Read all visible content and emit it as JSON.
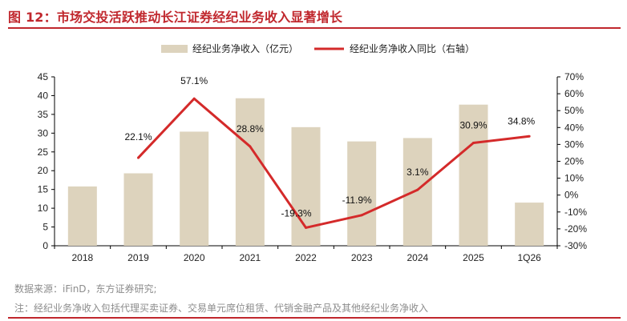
{
  "title": "图 12：市场交投活跃推动长江证券经纪业务收入显著增长",
  "source": "数据来源：iFinD，东方证券研究;",
  "footnote": "注：经纪业务净收入包括代理买卖证券、交易单元席位租赁、代销金融产品及其他经纪业务净收入",
  "colors": {
    "bar": "#ddd3bd",
    "line": "#d42a2a",
    "title": "#c0272d",
    "text": "#222222",
    "axis": "#000000"
  },
  "chart_data": {
    "type": "bar",
    "categories": [
      "2018",
      "2019",
      "2020",
      "2021",
      "2022",
      "2023",
      "2024",
      "2025",
      "1Q26"
    ],
    "series": [
      {
        "name": "经纪业务净收入（亿元）",
        "type": "bar",
        "axis": "left",
        "values": [
          15.8,
          19.3,
          30.4,
          39.3,
          31.6,
          27.8,
          28.7,
          37.6,
          11.5
        ]
      },
      {
        "name": "经纪业务净收入同比（右轴）",
        "type": "line",
        "axis": "right",
        "values": [
          null,
          22.1,
          57.1,
          28.8,
          -19.3,
          -11.9,
          3.1,
          30.9,
          34.8
        ],
        "labels": [
          "",
          "22.1%",
          "57.1%",
          "28.8%",
          "-19.3%",
          "-11.9%",
          "3.1%",
          "30.9%",
          "34.8%"
        ]
      }
    ],
    "ylim_left": [
      0,
      45
    ],
    "yticks_left": [
      "0",
      "5",
      "10",
      "15",
      "20",
      "25",
      "30",
      "35",
      "40",
      "45"
    ],
    "ylim_right": [
      -30,
      70
    ],
    "yticks_right": [
      "-30%",
      "-20%",
      "-10%",
      "0%",
      "10%",
      "20%",
      "30%",
      "40%",
      "50%",
      "60%",
      "70%"
    ],
    "grid": false,
    "legend_position": "top-center"
  }
}
